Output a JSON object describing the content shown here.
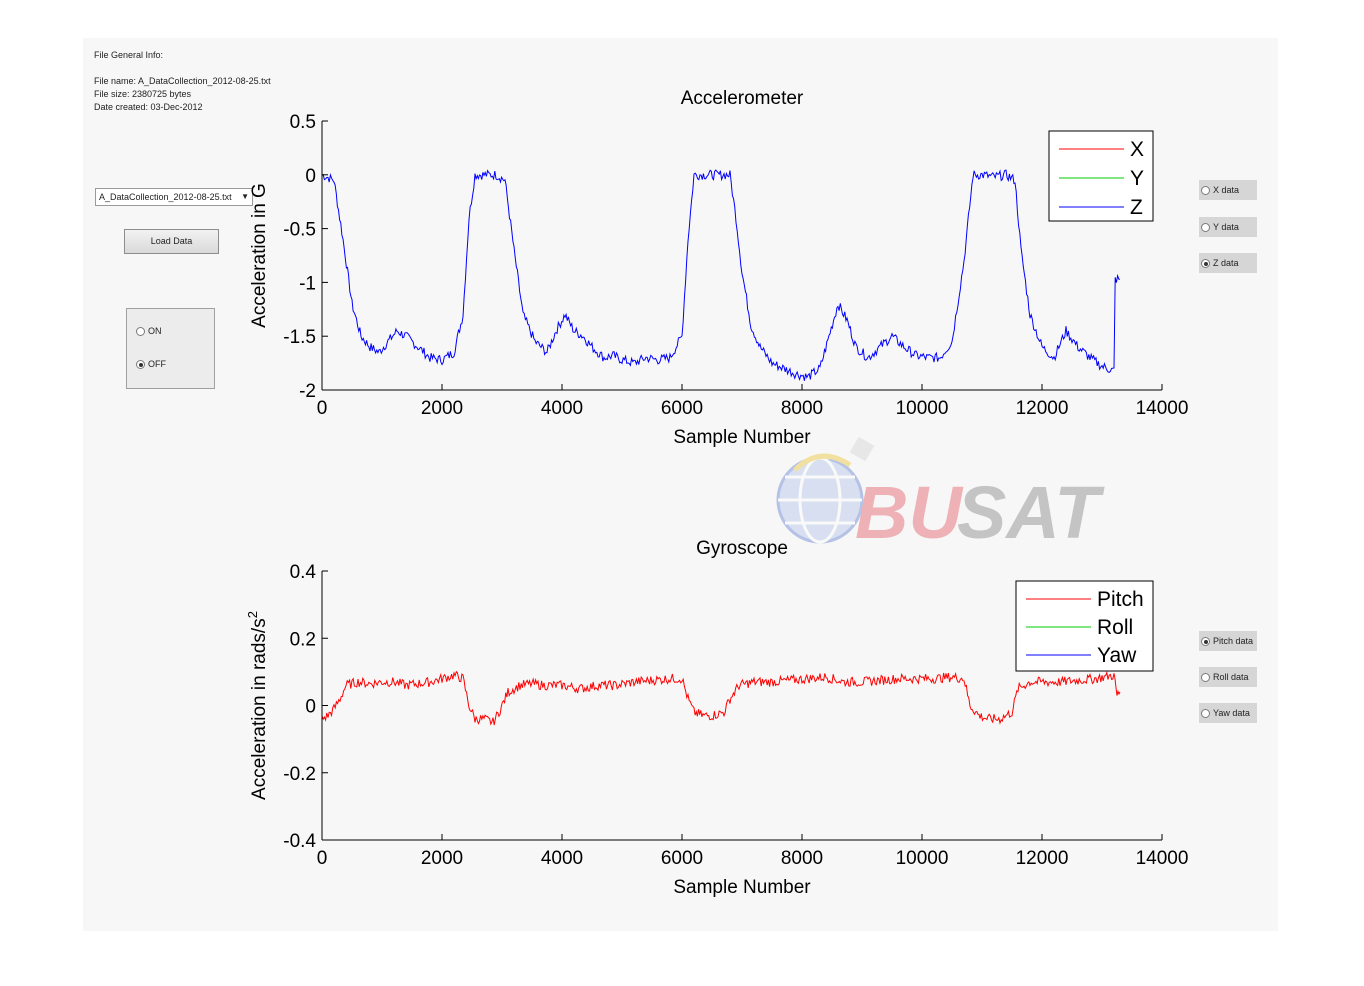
{
  "file_info": {
    "heading": "File General Info:",
    "name_line": "File name: A_DataCollection_2012-08-25.txt",
    "size_line": "File size: 2380725 bytes",
    "created_line": "Date created: 03-Dec-2012"
  },
  "file_dropdown": {
    "selected": "A_DataCollection_2012-08-25.txt"
  },
  "load_button": {
    "label": "Load Data"
  },
  "power_panel": {
    "options": [
      {
        "label": "ON",
        "selected": false
      },
      {
        "label": "OFF",
        "selected": true
      }
    ]
  },
  "accel_options": [
    {
      "label": "X data",
      "selected": false
    },
    {
      "label": "Y data",
      "selected": false
    },
    {
      "label": "Z data",
      "selected": true
    }
  ],
  "gyro_options": [
    {
      "label": "Pitch data",
      "selected": true
    },
    {
      "label": "Roll data",
      "selected": false
    },
    {
      "label": "Yaw data",
      "selected": false
    }
  ],
  "watermark": {
    "text": "BUSAT"
  },
  "chart_data": [
    {
      "type": "line",
      "title": "Accelerometer",
      "xlabel": "Sample Number",
      "ylabel": "Acceleration in G",
      "xlim": [
        0,
        14000
      ],
      "ylim": [
        -2,
        0.5
      ],
      "xticks": [
        0,
        2000,
        4000,
        6000,
        8000,
        10000,
        12000,
        14000
      ],
      "yticks": [
        -2,
        -1.5,
        -1,
        -0.5,
        0,
        0.5
      ],
      "grid": false,
      "legend": "top-right",
      "series": [
        {
          "name": "X",
          "color": "#ff0000",
          "x": [],
          "y": []
        },
        {
          "name": "Y",
          "color": "#00cc00",
          "x": [],
          "y": []
        },
        {
          "name": "Z",
          "color": "#0000ff",
          "x": [
            0,
            200,
            350,
            500,
            650,
            800,
            950,
            1100,
            1250,
            1400,
            1600,
            1800,
            2000,
            2200,
            2350,
            2450,
            2550,
            2700,
            2900,
            3050,
            3200,
            3350,
            3550,
            3750,
            3900,
            4050,
            4200,
            4350,
            4500,
            4700,
            4850,
            5000,
            5200,
            5400,
            5600,
            5800,
            6000,
            6100,
            6200,
            6300,
            6450,
            6600,
            6800,
            6900,
            7000,
            7150,
            7300,
            7500,
            7700,
            7900,
            8100,
            8300,
            8450,
            8600,
            8750,
            8900,
            9100,
            9300,
            9500,
            9700,
            9900,
            10100,
            10300,
            10500,
            10700,
            10850,
            11000,
            11200,
            11400,
            11550,
            11650,
            11800,
            12000,
            12200,
            12400,
            12600,
            12800,
            13000,
            13200,
            13220,
            13300
          ],
          "y": [
            0,
            -0.05,
            -0.6,
            -1.2,
            -1.5,
            -1.6,
            -1.65,
            -1.55,
            -1.45,
            -1.5,
            -1.6,
            -1.7,
            -1.72,
            -1.65,
            -1.3,
            -0.4,
            0,
            0,
            0,
            -0.05,
            -0.7,
            -1.3,
            -1.55,
            -1.65,
            -1.45,
            -1.3,
            -1.45,
            -1.5,
            -1.6,
            -1.7,
            -1.68,
            -1.72,
            -1.75,
            -1.7,
            -1.72,
            -1.7,
            -1.5,
            -0.6,
            0,
            0,
            0,
            0,
            0,
            -0.4,
            -0.9,
            -1.4,
            -1.6,
            -1.75,
            -1.8,
            -1.85,
            -1.88,
            -1.8,
            -1.5,
            -1.2,
            -1.35,
            -1.6,
            -1.7,
            -1.6,
            -1.5,
            -1.6,
            -1.68,
            -1.7,
            -1.7,
            -1.55,
            -0.8,
            0,
            0,
            -0.02,
            0,
            -0.05,
            -0.7,
            -1.3,
            -1.6,
            -1.7,
            -1.45,
            -1.6,
            -1.7,
            -1.78,
            -1.82,
            -0.97,
            -0.97
          ]
        }
      ]
    },
    {
      "type": "line",
      "title": "Gyroscope",
      "xlabel": "Sample Number",
      "ylabel": "Acceleration in rads/s",
      "ylabel_superscript": "2",
      "xlim": [
        0,
        14000
      ],
      "ylim": [
        -0.4,
        0.4
      ],
      "xticks": [
        0,
        2000,
        4000,
        6000,
        8000,
        10000,
        12000,
        14000
      ],
      "yticks": [
        -0.4,
        -0.2,
        0,
        0.2,
        0.4
      ],
      "grid": false,
      "legend": "top-right",
      "series": [
        {
          "name": "Pitch",
          "color": "#ff0000",
          "x": [
            0,
            100,
            200,
            300,
            400,
            600,
            800,
            1000,
            1200,
            1400,
            1600,
            1800,
            2000,
            2200,
            2350,
            2450,
            2550,
            2700,
            2850,
            2950,
            3100,
            3300,
            3500,
            3700,
            4000,
            4300,
            4600,
            4900,
            5200,
            5500,
            5800,
            6000,
            6100,
            6200,
            6350,
            6500,
            6700,
            6800,
            6950,
            7200,
            7500,
            7800,
            8100,
            8400,
            8700,
            9000,
            9300,
            9600,
            9900,
            10200,
            10500,
            10700,
            10800,
            10950,
            11100,
            11300,
            11500,
            11600,
            11800,
            12000,
            12300,
            12600,
            12900,
            13200,
            13250,
            13300
          ],
          "y": [
            -0.04,
            -0.03,
            -0.01,
            0.02,
            0.06,
            0.07,
            0.065,
            0.07,
            0.07,
            0.06,
            0.065,
            0.07,
            0.08,
            0.09,
            0.08,
            0.0,
            -0.04,
            -0.04,
            -0.05,
            -0.02,
            0.04,
            0.06,
            0.065,
            0.06,
            0.06,
            0.05,
            0.06,
            0.06,
            0.07,
            0.075,
            0.08,
            0.08,
            0.02,
            -0.02,
            -0.03,
            -0.03,
            -0.02,
            0.02,
            0.06,
            0.07,
            0.07,
            0.075,
            0.08,
            0.085,
            0.07,
            0.07,
            0.075,
            0.08,
            0.08,
            0.08,
            0.085,
            0.08,
            0.0,
            -0.03,
            -0.04,
            -0.04,
            -0.02,
            0.05,
            0.07,
            0.07,
            0.07,
            0.075,
            0.08,
            0.09,
            0.03,
            0.04
          ]
        },
        {
          "name": "Roll",
          "color": "#00cc00",
          "x": [],
          "y": []
        },
        {
          "name": "Yaw",
          "color": "#0000ff",
          "x": [],
          "y": []
        }
      ]
    }
  ]
}
